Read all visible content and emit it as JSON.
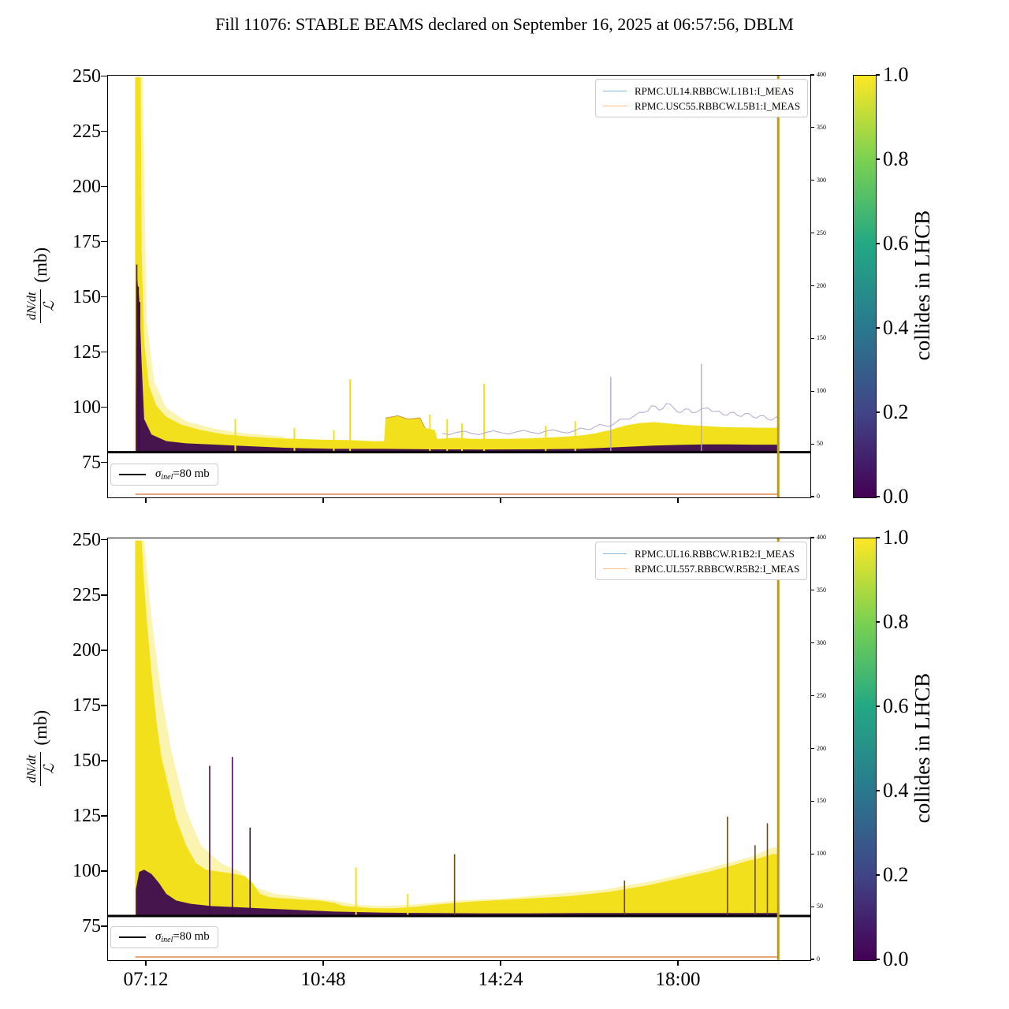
{
  "title": "Fill 11076: STABLE BEAMS declared on September 16, 2025 at 06:57:56, DBLM",
  "ylabel": {
    "num": "dN/dt",
    "den": "ℒ",
    "unit": "(mb)"
  },
  "sigma": {
    "sym": "σ",
    "sub": "inel",
    "rest": "=80 mb"
  },
  "colorbar": {
    "label": "collides in LHCB",
    "ticks": [
      1.0,
      0.8,
      0.6,
      0.4,
      0.2,
      0.0
    ]
  },
  "colors": {
    "yellow": "#f3e01d",
    "purple": "#3f0d50",
    "lavender": "#b3a6c6",
    "dark_spike": "#6b4a10",
    "orange_current": "#e0854f",
    "gold_dump": "#b89a20",
    "legend_blue": "#8ab6d8",
    "legend_orange": "#fdbe84",
    "sigma_line": "#000000",
    "viridis_stops": [
      "#440154",
      "#414487",
      "#2a788e",
      "#22a884",
      "#7ad151",
      "#fde725"
    ]
  },
  "chart_data": [
    {
      "type": "scatter",
      "panel": "top",
      "xlim": [
        6.416,
        20.672
      ],
      "xticks": {
        "hours": [
          7.2,
          10.8,
          14.4,
          18.0
        ],
        "labels": [
          "07:12",
          "10:48",
          "14:24",
          "18:00"
        ]
      },
      "ylim": [
        59.5,
        250.6
      ],
      "yticks": [
        250,
        225,
        200,
        175,
        150,
        125,
        100,
        75
      ],
      "right_axis": {
        "ylim": [
          0,
          400
        ],
        "ticks": [
          0,
          50,
          100,
          150,
          200,
          250,
          300,
          350,
          400
        ]
      },
      "legend": [
        "RPMC.UL14.RBBCW.L1B1:I_MEAS",
        "RPMC.USC55.RBBCW.L5B1:I_MEAS"
      ],
      "sigma_line_mb": 80,
      "beam_dump_hour": 20.02,
      "wire_current": {
        "right_value": 3,
        "t_start": 6.97,
        "t_end": 20.02
      },
      "series": {
        "band_base": 80,
        "band_top": [
          [
            6.97,
            250
          ],
          [
            7.08,
            250
          ],
          [
            7.1,
            170
          ],
          [
            7.15,
            130
          ],
          [
            7.25,
            110
          ],
          [
            7.4,
            101
          ],
          [
            7.6,
            96
          ],
          [
            7.9,
            92.5
          ],
          [
            8.3,
            90
          ],
          [
            8.8,
            88
          ],
          [
            9.3,
            87
          ],
          [
            9.8,
            86.3
          ],
          [
            10.3,
            86
          ],
          [
            10.8,
            85.6
          ],
          [
            11.3,
            85.5
          ],
          [
            11.8,
            85
          ],
          [
            12.02,
            85
          ],
          [
            12.05,
            95.5
          ],
          [
            12.3,
            96.5
          ],
          [
            12.5,
            95
          ],
          [
            12.75,
            95.5
          ],
          [
            12.85,
            91
          ],
          [
            13.05,
            90
          ],
          [
            13.1,
            86
          ],
          [
            13.5,
            86.5
          ],
          [
            13.8,
            86
          ],
          [
            14.1,
            86
          ],
          [
            14.5,
            86
          ],
          [
            15.0,
            86.3
          ],
          [
            15.5,
            86.8
          ],
          [
            16.0,
            87.5
          ],
          [
            16.3,
            88.5
          ],
          [
            16.6,
            90
          ],
          [
            16.9,
            92
          ],
          [
            17.2,
            93.2
          ],
          [
            17.5,
            93.6
          ],
          [
            17.8,
            93
          ],
          [
            18.1,
            92.4
          ],
          [
            18.4,
            92
          ],
          [
            18.7,
            91.6
          ],
          [
            19.0,
            91.3
          ],
          [
            19.3,
            91.2
          ],
          [
            19.6,
            91.1
          ],
          [
            19.9,
            91
          ],
          [
            20.02,
            91
          ]
        ],
        "haze_top": [
          [
            6.96,
            250
          ],
          [
            7.12,
            250
          ],
          [
            7.2,
            140
          ],
          [
            7.35,
            112
          ],
          [
            7.6,
            100
          ],
          [
            8.0,
            94
          ],
          [
            8.5,
            91
          ],
          [
            9.0,
            89
          ],
          [
            9.5,
            88
          ],
          [
            10.0,
            87
          ]
        ],
        "purple_top": [
          [
            6.98,
            100
          ],
          [
            7.0,
            160
          ],
          [
            7.05,
            150
          ],
          [
            7.1,
            120
          ],
          [
            7.15,
            95
          ],
          [
            7.3,
            88
          ],
          [
            7.6,
            85
          ],
          [
            8.0,
            84
          ],
          [
            8.5,
            83.5
          ],
          [
            9.0,
            83
          ],
          [
            9.5,
            82.5
          ],
          [
            10.0,
            82
          ],
          [
            11.0,
            81.5
          ],
          [
            12.0,
            81.5
          ],
          [
            13.0,
            81.3
          ],
          [
            14.0,
            81.2
          ],
          [
            15.0,
            81.3
          ],
          [
            16.0,
            81.5
          ],
          [
            16.5,
            82
          ],
          [
            17.0,
            82.5
          ],
          [
            17.5,
            83
          ],
          [
            18.0,
            83.3
          ],
          [
            18.5,
            83.5
          ],
          [
            19.0,
            83.5
          ],
          [
            19.5,
            83.4
          ],
          [
            20.02,
            83.4
          ]
        ],
        "lavender": [
          [
            13.2,
            88.5
          ],
          [
            13.5,
            89
          ],
          [
            13.8,
            88.5
          ],
          [
            14.1,
            89
          ],
          [
            14.4,
            88.8
          ],
          [
            14.7,
            89.2
          ],
          [
            15.0,
            89
          ],
          [
            15.3,
            89.5
          ],
          [
            15.6,
            89.2
          ],
          [
            15.9,
            89.8
          ],
          [
            16.1,
            90.5
          ],
          [
            16.3,
            91.5
          ],
          [
            16.5,
            92
          ],
          [
            16.7,
            93
          ],
          [
            16.9,
            95
          ],
          [
            17.1,
            96.5
          ],
          [
            17.3,
            98
          ],
          [
            17.45,
            101
          ],
          [
            17.6,
            99
          ],
          [
            17.75,
            102
          ],
          [
            17.9,
            100
          ],
          [
            18.05,
            98
          ],
          [
            18.2,
            99.5
          ],
          [
            18.35,
            98
          ],
          [
            18.6,
            100
          ],
          [
            18.75,
            98.5
          ],
          [
            18.9,
            97
          ],
          [
            19.05,
            98
          ],
          [
            19.2,
            96.5
          ],
          [
            19.35,
            97.5
          ],
          [
            19.5,
            96
          ],
          [
            19.65,
            96.5
          ],
          [
            19.8,
            95
          ],
          [
            19.95,
            95.5
          ],
          [
            20.02,
            95
          ]
        ],
        "accent": [
          [
            12.05,
            95.5
          ],
          [
            12.3,
            96.5
          ],
          [
            12.5,
            95
          ],
          [
            12.75,
            95.5
          ],
          [
            12.85,
            91
          ]
        ],
        "spikes": [
          [
            7.0,
            165,
            "p"
          ],
          [
            7.03,
            155,
            "p"
          ],
          [
            7.06,
            148,
            "p"
          ],
          [
            9.0,
            95,
            "y"
          ],
          [
            10.2,
            91,
            "y"
          ],
          [
            11.0,
            90,
            "y"
          ],
          [
            11.33,
            113,
            "y"
          ],
          [
            12.95,
            97,
            "y"
          ],
          [
            13.3,
            95,
            "y"
          ],
          [
            13.6,
            93,
            "y"
          ],
          [
            14.05,
            111,
            "y"
          ],
          [
            15.3,
            92,
            "y"
          ],
          [
            15.9,
            94,
            "y"
          ],
          [
            16.62,
            114,
            "l"
          ],
          [
            18.46,
            120,
            "l"
          ]
        ]
      }
    },
    {
      "type": "scatter",
      "panel": "bottom",
      "xlim": [
        6.416,
        20.672
      ],
      "xticks": {
        "hours": [
          7.2,
          10.8,
          14.4,
          18.0
        ],
        "labels": [
          "07:12",
          "10:48",
          "14:24",
          "18:00"
        ]
      },
      "ylim": [
        60,
        251
      ],
      "yticks": [
        250,
        225,
        200,
        175,
        150,
        125,
        100,
        75
      ],
      "right_axis": {
        "ylim": [
          0,
          400
        ],
        "ticks": [
          0,
          50,
          100,
          150,
          200,
          250,
          300,
          350,
          400
        ]
      },
      "legend": [
        "RPMC.UL16.RBBCW.R1B2:I_MEAS",
        "RPMC.UL557.RBBCW.R5B2:I_MEAS"
      ],
      "sigma_line_mb": 80,
      "beam_dump_hour": 20.02,
      "wire_current": {
        "right_value": 3,
        "t_start": 6.97,
        "t_end": 20.02
      },
      "series": {
        "band_base": 80,
        "band_top": [
          [
            6.97,
            250
          ],
          [
            7.1,
            250
          ],
          [
            7.15,
            230
          ],
          [
            7.2,
            215
          ],
          [
            7.3,
            190
          ],
          [
            7.4,
            168
          ],
          [
            7.5,
            152
          ],
          [
            7.65,
            138
          ],
          [
            7.8,
            124
          ],
          [
            8.0,
            112
          ],
          [
            8.2,
            104
          ],
          [
            8.4,
            101
          ],
          [
            8.7,
            100
          ],
          [
            9.0,
            99
          ],
          [
            9.2,
            98
          ],
          [
            9.35,
            95
          ],
          [
            9.5,
            90
          ],
          [
            9.7,
            88.5
          ],
          [
            10.0,
            88
          ],
          [
            10.3,
            87.5
          ],
          [
            10.7,
            87
          ],
          [
            11.0,
            86
          ],
          [
            11.2,
            84.5
          ],
          [
            11.5,
            84
          ],
          [
            11.8,
            83.5
          ],
          [
            12.2,
            83.5
          ],
          [
            12.6,
            84
          ],
          [
            13.0,
            85
          ],
          [
            13.5,
            86
          ],
          [
            13.8,
            86.5
          ],
          [
            14.2,
            87
          ],
          [
            14.6,
            87.5
          ],
          [
            15.0,
            88
          ],
          [
            15.4,
            88.5
          ],
          [
            15.8,
            89
          ],
          [
            16.2,
            90
          ],
          [
            16.6,
            91
          ],
          [
            17.0,
            92.5
          ],
          [
            17.4,
            94
          ],
          [
            17.8,
            96
          ],
          [
            18.2,
            98
          ],
          [
            18.6,
            100
          ],
          [
            19.1,
            103
          ],
          [
            19.4,
            105
          ],
          [
            19.6,
            106
          ],
          [
            19.9,
            108
          ],
          [
            20.02,
            108
          ]
        ],
        "haze_top": [
          [
            6.96,
            250
          ],
          [
            7.15,
            250
          ],
          [
            7.3,
            215
          ],
          [
            7.5,
            180
          ],
          [
            7.7,
            155
          ],
          [
            8.0,
            128
          ],
          [
            8.3,
            112
          ],
          [
            8.7,
            104
          ],
          [
            9.1,
            100
          ],
          [
            9.4,
            93
          ],
          [
            9.8,
            90
          ],
          [
            10.2,
            89
          ],
          [
            10.6,
            88
          ],
          [
            11.0,
            87
          ],
          [
            11.5,
            85
          ],
          [
            12.0,
            84.5
          ],
          [
            12.5,
            85
          ],
          [
            13.0,
            86
          ],
          [
            13.5,
            87
          ],
          [
            14.0,
            87.5
          ],
          [
            14.5,
            88
          ],
          [
            15.0,
            89
          ],
          [
            15.5,
            90
          ],
          [
            16.0,
            91
          ],
          [
            16.5,
            92
          ],
          [
            17.0,
            94
          ],
          [
            17.5,
            96
          ],
          [
            18.0,
            98.5
          ],
          [
            18.5,
            101
          ],
          [
            19.0,
            104
          ],
          [
            19.5,
            107
          ],
          [
            19.9,
            111
          ],
          [
            20.02,
            111
          ]
        ],
        "purple_top": [
          [
            6.98,
            92
          ],
          [
            7.05,
            100
          ],
          [
            7.15,
            101
          ],
          [
            7.3,
            99
          ],
          [
            7.45,
            95
          ],
          [
            7.6,
            90
          ],
          [
            7.8,
            87
          ],
          [
            8.1,
            85.5
          ],
          [
            8.5,
            84.5
          ],
          [
            9.0,
            84
          ],
          [
            9.5,
            83.5
          ],
          [
            10.0,
            83
          ],
          [
            10.5,
            82.5
          ],
          [
            11.0,
            82
          ],
          [
            12.0,
            81.5
          ],
          [
            13.0,
            81.3
          ],
          [
            14.0,
            81.2
          ],
          [
            15.0,
            81.2
          ],
          [
            16.0,
            81.3
          ],
          [
            17.0,
            81.3
          ],
          [
            18.0,
            81.3
          ],
          [
            19.0,
            81.3
          ],
          [
            20.02,
            81.3
          ]
        ],
        "lavender": [],
        "accent": [],
        "spikes": [
          [
            8.48,
            148,
            "p"
          ],
          [
            8.94,
            152,
            "p"
          ],
          [
            9.3,
            120,
            "p"
          ],
          [
            11.45,
            102,
            "y"
          ],
          [
            12.5,
            90,
            "y"
          ],
          [
            13.45,
            108,
            "d"
          ],
          [
            16.9,
            96,
            "d"
          ],
          [
            18.99,
            125,
            "d"
          ],
          [
            19.55,
            112,
            "d"
          ],
          [
            19.8,
            122,
            "d"
          ]
        ]
      }
    }
  ]
}
